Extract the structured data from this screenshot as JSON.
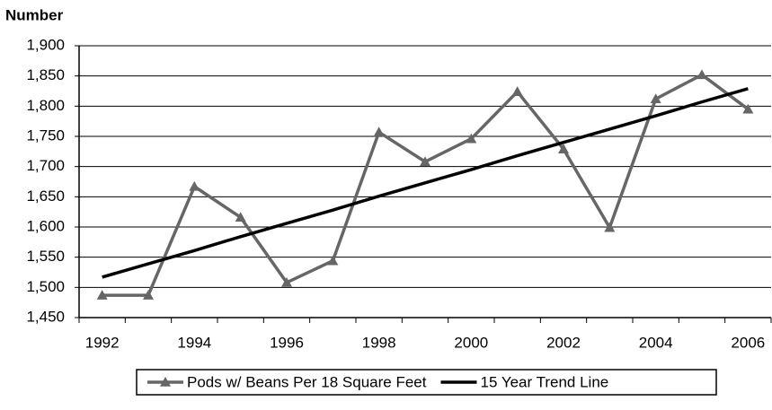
{
  "chart_data": {
    "type": "line",
    "y_label": "Number",
    "categories": [
      "1992",
      null,
      "1994",
      null,
      "1996",
      null,
      "1998",
      null,
      "2000",
      null,
      "2002",
      null,
      "2004",
      null,
      "2006"
    ],
    "series": [
      {
        "name": "Pods w/ Beans Per 18 Square Feet",
        "color": "#666666",
        "marker": "triangle",
        "values": [
          1487,
          1487,
          1667,
          1616,
          1508,
          1544,
          1757,
          1708,
          1746,
          1824,
          1729,
          1599,
          1812,
          1852,
          1795
        ]
      },
      {
        "name": "15 Year Trend Line",
        "color": "#000000",
        "values": [
          1517,
          1539,
          1561,
          1584,
          1606,
          1628,
          1651,
          1673,
          1695,
          1718,
          1740,
          1762,
          1784,
          1807,
          1829
        ]
      }
    ],
    "ylim": [
      1450,
      1900
    ],
    "yticks": [
      {
        "value": 1450,
        "label": "1,450"
      },
      {
        "value": 1500,
        "label": "1,500"
      },
      {
        "value": 1550,
        "label": "1,550"
      },
      {
        "value": 1600,
        "label": "1,600"
      },
      {
        "value": 1650,
        "label": "1,650"
      },
      {
        "value": 1700,
        "label": "1,700"
      },
      {
        "value": 1750,
        "label": "1,750"
      },
      {
        "value": 1800,
        "label": "1,800"
      },
      {
        "value": 1850,
        "label": "1,850"
      },
      {
        "value": 1900,
        "label": "1,900"
      }
    ],
    "grid": true,
    "legend": "bottom"
  }
}
